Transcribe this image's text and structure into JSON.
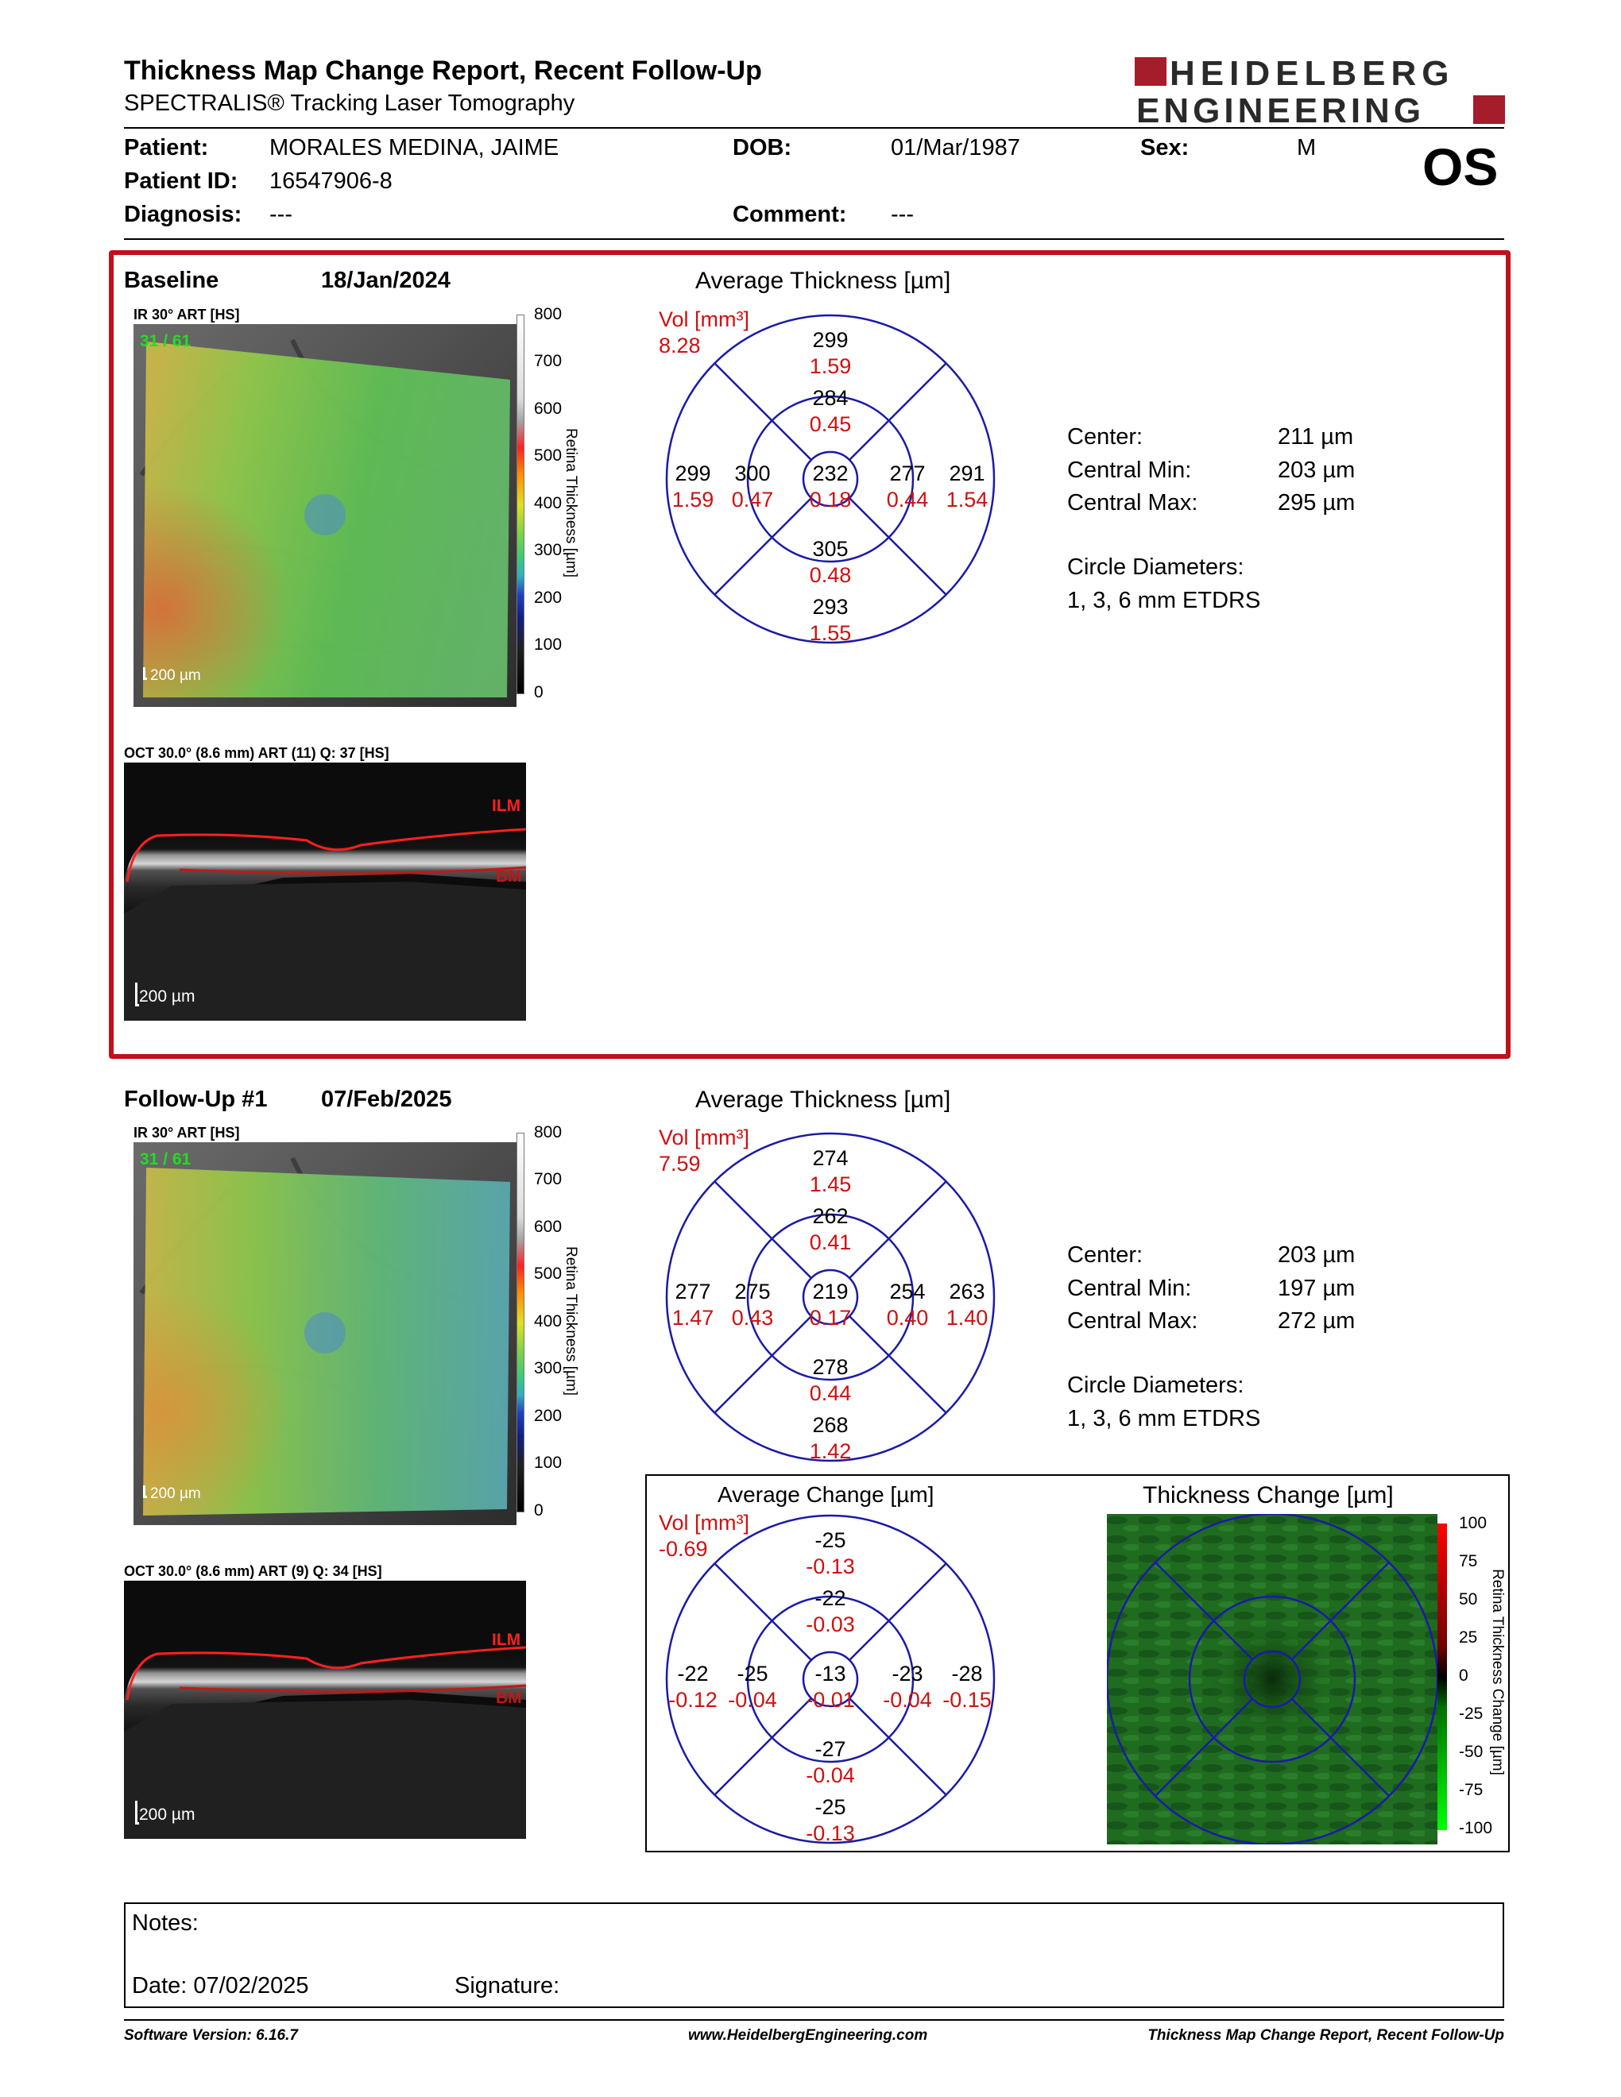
{
  "header": {
    "title": "Thickness Map Change Report, Recent Follow-Up",
    "subtitle": "SPECTRALIS® Tracking Laser Tomography",
    "logo_line1": "HEIDELBERG",
    "logo_line2": "ENGINEERING",
    "eye": "OS"
  },
  "patient": {
    "patient_label": "Patient:",
    "patient_value": "MORALES MEDINA, JAIME",
    "id_label": "Patient ID:",
    "id_value": "16547906-8",
    "diagnosis_label": "Diagnosis:",
    "diagnosis_value": "---",
    "dob_label": "DOB:",
    "dob_value": "01/Mar/1987",
    "comment_label": "Comment:",
    "comment_value": "---",
    "sex_label": "Sex:",
    "sex_value": "M"
  },
  "baseline": {
    "label": "Baseline",
    "date": "18/Jan/2024",
    "ir_caption": "IR 30° ART [HS]",
    "ir_overlay": "31 / 61",
    "ir_scalebar": "200 µm",
    "oct_caption": "OCT 30.0° (8.6 mm) ART (11) Q: 37 [HS]",
    "oct_scalebar": "200 µm",
    "ilm": "ILM",
    "bm": "BM",
    "colorbar_ticks": [
      "800",
      "700",
      "600",
      "500",
      "400",
      "300",
      "200",
      "100",
      "0"
    ],
    "colorbar_title": "Retina Thickness [µm]",
    "avg_title": "Average Thickness [µm]",
    "vol_label": "Vol [mm³]",
    "vol_total": "8.28",
    "grid": {
      "outer_top": [
        "299",
        "1.59"
      ],
      "inner_top": [
        "284",
        "0.45"
      ],
      "outer_left": [
        "299",
        "1.59"
      ],
      "inner_left": [
        "300",
        "0.47"
      ],
      "center": [
        "232",
        "0.18"
      ],
      "inner_right": [
        "277",
        "0.44"
      ],
      "outer_right": [
        "291",
        "1.54"
      ],
      "inner_bottom": [
        "305",
        "0.48"
      ],
      "outer_bottom": [
        "293",
        "1.55"
      ]
    },
    "stats": {
      "center_label": "Center:",
      "center_value": "211 µm",
      "min_label": "Central Min:",
      "min_value": "203 µm",
      "max_label": "Central Max:",
      "max_value": "295 µm",
      "circ_label": "Circle Diameters:",
      "circ_value": "1, 3, 6 mm ETDRS"
    }
  },
  "followup": {
    "label": "Follow-Up #1",
    "date": "07/Feb/2025",
    "ir_caption": "IR 30° ART [HS]",
    "ir_overlay": "31 / 61",
    "ir_scalebar": "200 µm",
    "oct_caption": "OCT 30.0° (8.6 mm) ART (9) Q: 34 [HS]",
    "oct_scalebar": "200 µm",
    "ilm": "ILM",
    "bm": "BM",
    "colorbar_ticks": [
      "800",
      "700",
      "600",
      "500",
      "400",
      "300",
      "200",
      "100",
      "0"
    ],
    "colorbar_title": "Retina Thickness [µm]",
    "avg_title": "Average Thickness [µm]",
    "vol_label": "Vol [mm³]",
    "vol_total": "7.59",
    "grid": {
      "outer_top": [
        "274",
        "1.45"
      ],
      "inner_top": [
        "262",
        "0.41"
      ],
      "outer_left": [
        "277",
        "1.47"
      ],
      "inner_left": [
        "275",
        "0.43"
      ],
      "center": [
        "219",
        "0.17"
      ],
      "inner_right": [
        "254",
        "0.40"
      ],
      "outer_right": [
        "263",
        "1.40"
      ],
      "inner_bottom": [
        "278",
        "0.44"
      ],
      "outer_bottom": [
        "268",
        "1.42"
      ]
    },
    "stats": {
      "center_label": "Center:",
      "center_value": "203 µm",
      "min_label": "Central Min:",
      "min_value": "197 µm",
      "max_label": "Central Max:",
      "max_value": "272 µm",
      "circ_label": "Circle Diameters:",
      "circ_value": "1, 3, 6 mm ETDRS"
    }
  },
  "change": {
    "avg_title": "Average Change [µm]",
    "vol_label": "Vol [mm³]",
    "vol_total": "-0.69",
    "grid": {
      "outer_top": [
        "-25",
        "-0.13"
      ],
      "inner_top": [
        "-22",
        "-0.03"
      ],
      "outer_left": [
        "-22",
        "-0.12"
      ],
      "inner_left": [
        "-25",
        "-0.04"
      ],
      "center": [
        "-13",
        "-0.01"
      ],
      "inner_right": [
        "-23",
        "-0.04"
      ],
      "outer_right": [
        "-28",
        "-0.15"
      ],
      "inner_bottom": [
        "-27",
        "-0.04"
      ],
      "outer_bottom": [
        "-25",
        "-0.13"
      ]
    },
    "map_title": "Thickness Change [µm]",
    "colorbar_ticks": [
      "100",
      "75",
      "50",
      "25",
      "0",
      "-25",
      "-50",
      "-75",
      "-100"
    ],
    "colorbar_title": "Retina Thickness Change [µm]"
  },
  "notes": {
    "notes_label": "Notes:",
    "date_label": "Date: 07/02/2025",
    "signature_label": "Signature:"
  },
  "footer": {
    "software": "Software Version: 6.16.7",
    "website": "www.HeidelbergEngineering.com",
    "report_name": "Thickness Map Change Report, Recent Follow-Up"
  },
  "colors": {
    "etdrs_blue": "#1a1aa8",
    "volume_red": "#d01010",
    "panel_red": "#c0101a",
    "overlay_green": "#22dd22"
  }
}
